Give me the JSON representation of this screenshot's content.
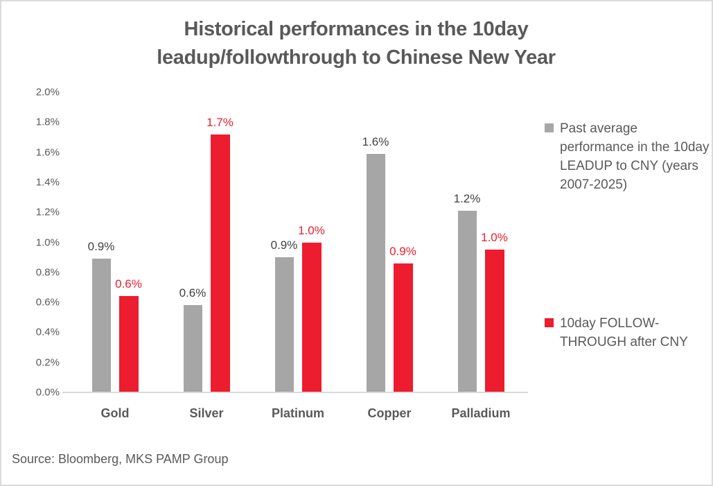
{
  "chart_data": {
    "type": "bar",
    "title": "Historical performances in the 10day leadup/followthrough to Chinese New Year",
    "source_note": "Source: Bloomberg, MKS PAMP Group",
    "categories": [
      "Gold",
      "Silver",
      "Platinum",
      "Copper",
      "Palladium"
    ],
    "series": [
      {
        "name": "Past average performance in the 10day LEADUP to CNY (years 2007-2025)",
        "color": "#A6A6A6",
        "label_color": "#404040",
        "values": [
          0.9,
          0.6,
          0.9,
          1.6,
          1.2
        ],
        "labels": [
          "0.9%",
          "0.6%",
          "0.9%",
          "1.6%",
          "1.2%"
        ],
        "bar_heights_pct": [
          0.89,
          0.58,
          0.9,
          1.59,
          1.21
        ]
      },
      {
        "name": "10day FOLLOW-THROUGH after CNY",
        "color": "#ED1C2E",
        "label_color": "#ED1C2E",
        "values": [
          0.6,
          1.7,
          1.0,
          0.9,
          1.0
        ],
        "labels": [
          "0.6%",
          "1.7%",
          "1.0%",
          "0.9%",
          "1.0%"
        ],
        "bar_heights_pct": [
          0.64,
          1.72,
          1.0,
          0.86,
          0.95
        ]
      }
    ],
    "y_axis": {
      "min": 0.0,
      "max": 2.0,
      "step": 0.2,
      "tick_labels": [
        "2.0%",
        "1.8%",
        "1.6%",
        "1.4%",
        "1.2%",
        "1.0%",
        "0.8%",
        "0.6%",
        "0.4%",
        "0.2%",
        "0.0%"
      ]
    },
    "grid": false,
    "legend_position": "right",
    "colors": {
      "axis_line": "#D9D9D9",
      "text": "#595959",
      "frame_border": "#DBDBDB"
    }
  }
}
